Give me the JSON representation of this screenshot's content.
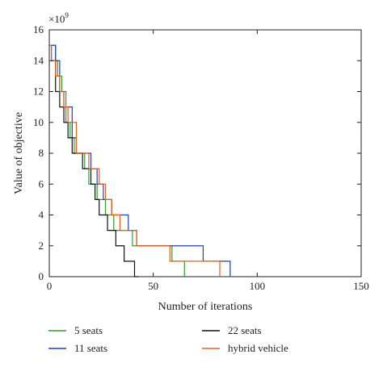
{
  "chart_data": {
    "type": "line",
    "title": "",
    "xlabel": "Number of iterations",
    "ylabel": "Value of objective",
    "y_multiplier_label": "×10",
    "y_multiplier_exponent": "9",
    "xlim": [
      0,
      150
    ],
    "ylim": [
      0,
      16
    ],
    "x_ticks": [
      0,
      50,
      100,
      150
    ],
    "y_ticks": [
      0,
      2,
      4,
      6,
      8,
      10,
      12,
      14,
      16
    ],
    "grid": false,
    "legend_position": "bottom",
    "series": [
      {
        "name": "5 seats",
        "color": "#2ca02c",
        "x": [
          0,
          1,
          3,
          4,
          6,
          8,
          10,
          12,
          15,
          17,
          19,
          21,
          23,
          25,
          27,
          29,
          31,
          33,
          35,
          37,
          40,
          43,
          45,
          48,
          52,
          56,
          59,
          62,
          65
        ],
        "y": [
          15,
          15,
          14,
          13,
          12,
          10,
          9,
          8,
          8,
          7,
          6,
          6,
          5,
          5,
          4,
          4,
          3,
          3,
          3,
          3,
          2,
          2,
          2,
          2,
          2,
          2,
          1,
          1,
          0
        ]
      },
      {
        "name": "11 seats",
        "color": "#1f3fbf",
        "x": [
          0,
          1,
          3,
          5,
          7,
          9,
          11,
          13,
          15,
          17,
          20,
          23,
          26,
          28,
          30,
          32,
          34,
          36,
          38,
          40,
          42,
          45,
          50,
          55,
          60,
          65,
          70,
          74,
          80,
          85,
          87
        ],
        "y": [
          15,
          15,
          14,
          12,
          11,
          11,
          9,
          8,
          8,
          8,
          7,
          6,
          5,
          5,
          4,
          4,
          4,
          4,
          3,
          3,
          2,
          2,
          2,
          2,
          2,
          2,
          2,
          1,
          1,
          1,
          0
        ]
      },
      {
        "name": "22 seats",
        "color": "#111111",
        "x": [
          0,
          1,
          3,
          5,
          7,
          9,
          11,
          13,
          16,
          18,
          20,
          22,
          24,
          26,
          28,
          30,
          32,
          34,
          36,
          38,
          41,
          43
        ],
        "y": [
          15,
          14,
          12,
          11,
          10,
          9,
          8,
          8,
          7,
          7,
          6,
          5,
          4,
          4,
          3,
          3,
          2,
          2,
          1,
          1,
          0,
          0
        ]
      },
      {
        "name": "hybrid vehicle",
        "color": "#e06020",
        "x": [
          0,
          1,
          3,
          5,
          7,
          9,
          11,
          13,
          15,
          17,
          19,
          21,
          24,
          27,
          30,
          32,
          34,
          38,
          42,
          45,
          48,
          52,
          55,
          58,
          62,
          67,
          72,
          77,
          82
        ],
        "y": [
          15,
          14,
          13,
          12,
          11,
          10,
          10,
          8,
          8,
          8,
          7,
          7,
          6,
          5,
          4,
          4,
          3,
          3,
          2,
          2,
          2,
          2,
          2,
          1,
          1,
          1,
          1,
          1,
          0
        ]
      }
    ]
  }
}
